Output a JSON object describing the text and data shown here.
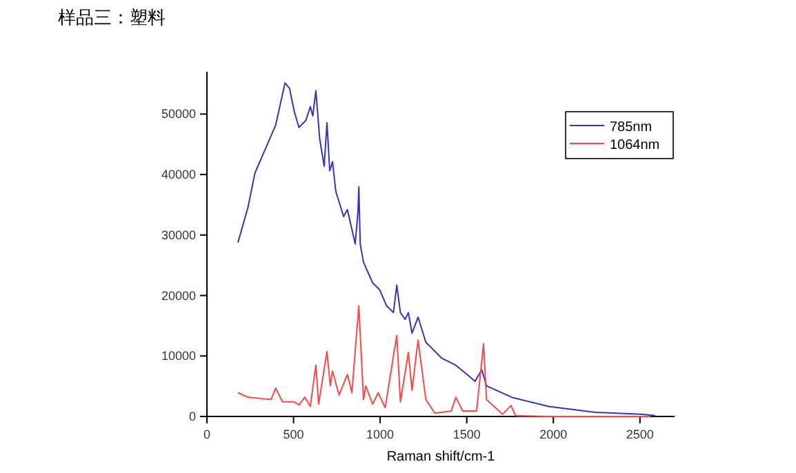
{
  "chart_data": {
    "type": "line",
    "title": "样品三：塑料",
    "xlabel": "Raman shift/cm-1",
    "xlim": [
      0,
      2700
    ],
    "xticks": [
      0,
      500,
      1000,
      1500,
      2000,
      2500
    ],
    "ylim": [
      0,
      57000
    ],
    "yticks": [
      0,
      10000,
      20000,
      30000,
      40000,
      50000
    ],
    "grid": false,
    "legend": "top right",
    "series": [
      {
        "name": "785nm",
        "color": "#3333bb",
        "x": [
          179,
          237,
          277,
          317,
          357,
          397,
          451,
          477,
          504,
          531,
          571,
          597,
          611,
          629,
          651,
          677,
          693,
          709,
          725,
          744,
          789,
          811,
          856,
          872,
          877,
          885,
          904,
          957,
          997,
          1037,
          1077,
          1096,
          1117,
          1144,
          1163,
          1184,
          1219,
          1264,
          1357,
          1437,
          1517,
          1547,
          1587,
          1614,
          1760,
          1974,
          2241,
          2508,
          2588
        ],
        "values": [
          28740,
          34570,
          40240,
          42890,
          45540,
          48190,
          55140,
          54240,
          50450,
          47800,
          48940,
          51210,
          49700,
          53860,
          45910,
          41380,
          48560,
          40620,
          42130,
          37220,
          33060,
          34190,
          28520,
          33810,
          37970,
          28520,
          25490,
          22090,
          20950,
          18300,
          17170,
          21710,
          17170,
          16040,
          17170,
          13770,
          16410,
          12250,
          9610,
          8470,
          6580,
          5800,
          7710,
          5060,
          3170,
          1650,
          680,
          360,
          140
        ]
      },
      {
        "name": "1064nm",
        "color": "#ff4444",
        "x": [
          179,
          237,
          317,
          371,
          397,
          437,
          504,
          531,
          565,
          597,
          629,
          645,
          693,
          712,
          725,
          763,
          811,
          837,
          877,
          904,
          917,
          957,
          989,
          1029,
          1096,
          1117,
          1163,
          1184,
          1219,
          1264,
          1317,
          1411,
          1437,
          1477,
          1557,
          1597,
          1614,
          1707,
          1755,
          1782,
          1974,
          2561
        ],
        "values": [
          3930,
          3180,
          2950,
          2800,
          4690,
          2420,
          2420,
          1890,
          3180,
          1660,
          8470,
          2040,
          10740,
          5070,
          7490,
          3560,
          6960,
          3930,
          18300,
          2800,
          5070,
          2040,
          3930,
          1440,
          13390,
          2420,
          10590,
          4310,
          12630,
          2800,
          530,
          910,
          3180,
          910,
          910,
          12020,
          2790,
          360,
          1810,
          140,
          0,
          0
        ]
      }
    ]
  }
}
